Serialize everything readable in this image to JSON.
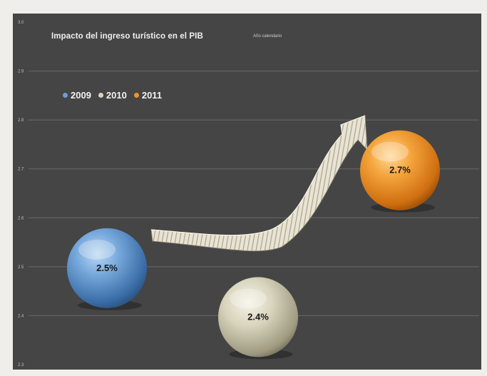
{
  "chart_data": {
    "type": "scatter",
    "title": "Impacto del ingreso turístico en el PIB",
    "subtitle": "Año calendario",
    "ylim": [
      2.3,
      3.0
    ],
    "yticks": [
      "3.0",
      "2.9",
      "2.8",
      "2.7",
      "2.6",
      "2.5",
      "2.4",
      "2.3"
    ],
    "grid": true,
    "legend_position": "top-left",
    "series": [
      {
        "name": "2009",
        "value": 2.5,
        "label": "2.5%",
        "color": "#4f86c6"
      },
      {
        "name": "2010",
        "value": 2.4,
        "label": "2.4%",
        "color": "#c9c5ae"
      },
      {
        "name": "2011",
        "value": 2.7,
        "label": "2.7%",
        "color": "#e98b22"
      }
    ],
    "legend": [
      "2009",
      "2010",
      "2011"
    ]
  }
}
